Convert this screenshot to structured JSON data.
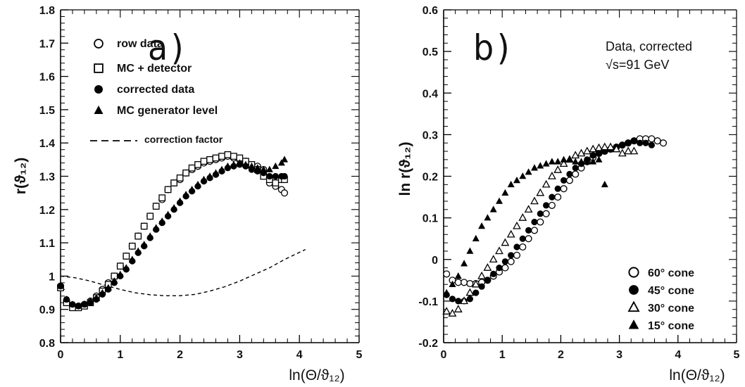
{
  "chart_data": [
    {
      "type": "scatter",
      "panel_label": "a)",
      "ylabel": "r(ϑ₁₂)",
      "xlabel": "ln(Θ/ϑ₁₂)",
      "xlim": [
        0,
        5
      ],
      "ylim": [
        0.8,
        1.8
      ],
      "x_ticks": [
        0,
        1,
        2,
        3,
        4,
        5
      ],
      "y_ticks": [
        0.8,
        0.9,
        1.0,
        1.1,
        1.2,
        1.3,
        1.4,
        1.5,
        1.6,
        1.7,
        1.8
      ],
      "x_tick_labels": [
        "0",
        "1",
        "2",
        "3",
        "4",
        "5"
      ],
      "y_tick_labels": [
        "0.8",
        "0.9",
        "1",
        "1.1",
        "1.2",
        "1.3",
        "1.4",
        "1.5",
        "1.6",
        "1.7",
        "1.8"
      ],
      "grid": false,
      "legend_position": "top-left",
      "series": [
        {
          "name": "row data",
          "marker": "open-circle",
          "x": [
            0.0,
            0.1,
            0.2,
            0.3,
            0.4,
            0.5,
            0.6,
            0.7,
            0.8,
            0.9,
            1.0,
            1.1,
            1.2,
            1.3,
            1.4,
            1.5,
            1.6,
            1.7,
            1.8,
            1.9,
            2.0,
            2.1,
            2.2,
            2.3,
            2.4,
            2.5,
            2.6,
            2.7,
            2.8,
            2.9,
            3.0,
            3.1,
            3.2,
            3.3,
            3.4,
            3.5,
            3.6,
            3.7,
            3.75
          ],
          "y": [
            0.97,
            0.925,
            0.91,
            0.91,
            0.915,
            0.925,
            0.94,
            0.96,
            0.98,
            1.0,
            1.03,
            1.06,
            1.09,
            1.12,
            1.15,
            1.18,
            1.21,
            1.23,
            1.26,
            1.28,
            1.29,
            1.31,
            1.32,
            1.33,
            1.34,
            1.345,
            1.35,
            1.355,
            1.36,
            1.355,
            1.35,
            1.345,
            1.33,
            1.33,
            1.32,
            1.28,
            1.27,
            1.26,
            1.25
          ]
        },
        {
          "name": "MC + detector",
          "marker": "open-square",
          "x": [
            0.0,
            0.1,
            0.2,
            0.3,
            0.4,
            0.5,
            0.6,
            0.7,
            0.8,
            0.9,
            1.0,
            1.1,
            1.2,
            1.3,
            1.4,
            1.5,
            1.6,
            1.7,
            1.8,
            1.9,
            2.0,
            2.1,
            2.2,
            2.3,
            2.4,
            2.5,
            2.6,
            2.7,
            2.8,
            2.9,
            3.0,
            3.1,
            3.2,
            3.3,
            3.4,
            3.5,
            3.6,
            3.7,
            3.75
          ],
          "y": [
            0.965,
            0.92,
            0.905,
            0.905,
            0.91,
            0.92,
            0.935,
            0.955,
            0.975,
            1.0,
            1.03,
            1.06,
            1.09,
            1.12,
            1.15,
            1.18,
            1.21,
            1.235,
            1.26,
            1.28,
            1.295,
            1.31,
            1.325,
            1.335,
            1.345,
            1.35,
            1.355,
            1.36,
            1.365,
            1.36,
            1.355,
            1.345,
            1.335,
            1.32,
            1.3,
            1.29,
            1.28,
            1.29,
            1.29
          ]
        },
        {
          "name": "corrected data",
          "marker": "filled-circle",
          "x": [
            0.0,
            0.1,
            0.2,
            0.3,
            0.4,
            0.5,
            0.6,
            0.7,
            0.8,
            0.9,
            1.0,
            1.1,
            1.2,
            1.3,
            1.4,
            1.5,
            1.6,
            1.7,
            1.8,
            1.9,
            2.0,
            2.1,
            2.2,
            2.3,
            2.4,
            2.5,
            2.6,
            2.7,
            2.8,
            2.9,
            3.0,
            3.1,
            3.2,
            3.3,
            3.4,
            3.5,
            3.6,
            3.7,
            3.75
          ],
          "y": [
            0.97,
            0.93,
            0.915,
            0.91,
            0.915,
            0.92,
            0.93,
            0.945,
            0.96,
            0.98,
            1.0,
            1.02,
            1.045,
            1.07,
            1.09,
            1.115,
            1.14,
            1.16,
            1.18,
            1.2,
            1.22,
            1.24,
            1.255,
            1.27,
            1.285,
            1.295,
            1.305,
            1.315,
            1.325,
            1.33,
            1.335,
            1.33,
            1.32,
            1.315,
            1.31,
            1.3,
            1.3,
            1.3,
            1.3
          ]
        },
        {
          "name": "MC generator level",
          "marker": "filled-triangle",
          "x": [
            0.0,
            0.1,
            0.2,
            0.3,
            0.4,
            0.5,
            0.6,
            0.7,
            0.8,
            0.9,
            1.0,
            1.1,
            1.2,
            1.3,
            1.4,
            1.5,
            1.6,
            1.7,
            1.8,
            1.9,
            2.0,
            2.1,
            2.2,
            2.3,
            2.4,
            2.5,
            2.6,
            2.7,
            2.8,
            2.9,
            3.0,
            3.1,
            3.2,
            3.3,
            3.4,
            3.5,
            3.6,
            3.7,
            3.75
          ],
          "y": [
            0.97,
            0.93,
            0.915,
            0.91,
            0.915,
            0.925,
            0.935,
            0.95,
            0.965,
            0.985,
            1.005,
            1.025,
            1.05,
            1.075,
            1.095,
            1.12,
            1.145,
            1.165,
            1.185,
            1.205,
            1.225,
            1.245,
            1.26,
            1.275,
            1.29,
            1.3,
            1.31,
            1.32,
            1.33,
            1.335,
            1.34,
            1.335,
            1.33,
            1.325,
            1.32,
            1.32,
            1.33,
            1.34,
            1.35
          ]
        }
      ],
      "correction_factor": {
        "name": "correction factor",
        "style": "dashed",
        "x": [
          0.0,
          0.25,
          0.5,
          0.75,
          1.0,
          1.25,
          1.5,
          1.75,
          2.0,
          2.25,
          2.5,
          2.75,
          3.0,
          3.25,
          3.5,
          3.75,
          4.1
        ],
        "y": [
          1.0,
          0.995,
          0.985,
          0.972,
          0.96,
          0.95,
          0.944,
          0.941,
          0.941,
          0.945,
          0.955,
          0.968,
          0.985,
          1.005,
          1.025,
          1.05,
          1.08
        ]
      }
    },
    {
      "type": "scatter",
      "panel_label": "b)",
      "annotation_lines": [
        "Data, corrected",
        "√s=91 GeV"
      ],
      "ylabel": "ln r(ϑ₁₂)",
      "xlabel": "ln(Θ/ϑ₁₂)",
      "xlim": [
        0,
        5
      ],
      "ylim": [
        -0.2,
        0.6
      ],
      "x_ticks": [
        0,
        1,
        2,
        3,
        4,
        5
      ],
      "y_ticks": [
        -0.2,
        -0.1,
        0.0,
        0.1,
        0.2,
        0.3,
        0.4,
        0.5,
        0.6
      ],
      "x_tick_labels": [
        "0",
        "1",
        "2",
        "3",
        "4",
        "5"
      ],
      "y_tick_labels": [
        "-0.2",
        "-0.1",
        "0",
        "0.1",
        "0.2",
        "0.3",
        "0.4",
        "0.5",
        "0.6"
      ],
      "grid": false,
      "legend_position": "bottom-right",
      "series": [
        {
          "name": "60° cone",
          "marker": "open-circle",
          "x": [
            0.05,
            0.15,
            0.25,
            0.35,
            0.45,
            0.55,
            0.65,
            0.75,
            0.85,
            0.95,
            1.05,
            1.15,
            1.25,
            1.35,
            1.45,
            1.55,
            1.65,
            1.75,
            1.85,
            1.95,
            2.05,
            2.15,
            2.25,
            2.35,
            2.45,
            2.55,
            2.65,
            2.75,
            2.85,
            2.95,
            3.05,
            3.15,
            3.25,
            3.35,
            3.45,
            3.55,
            3.65,
            3.75
          ],
          "y": [
            -0.035,
            -0.05,
            -0.055,
            -0.055,
            -0.058,
            -0.058,
            -0.055,
            -0.05,
            -0.04,
            -0.03,
            -0.02,
            -0.005,
            0.01,
            0.03,
            0.05,
            0.07,
            0.09,
            0.11,
            0.13,
            0.15,
            0.17,
            0.19,
            0.205,
            0.22,
            0.235,
            0.245,
            0.255,
            0.26,
            0.265,
            0.27,
            0.275,
            0.28,
            0.285,
            0.29,
            0.29,
            0.29,
            0.285,
            0.28
          ]
        },
        {
          "name": "45° cone",
          "marker": "filled-circle",
          "x": [
            0.05,
            0.15,
            0.25,
            0.35,
            0.45,
            0.55,
            0.65,
            0.75,
            0.85,
            0.95,
            1.05,
            1.15,
            1.25,
            1.35,
            1.45,
            1.55,
            1.65,
            1.75,
            1.85,
            1.95,
            2.05,
            2.15,
            2.25,
            2.35,
            2.45,
            2.55,
            2.65,
            2.75,
            2.85,
            2.95,
            3.05,
            3.15,
            3.25,
            3.35,
            3.45,
            3.55
          ],
          "y": [
            -0.085,
            -0.095,
            -0.1,
            -0.1,
            -0.095,
            -0.08,
            -0.065,
            -0.05,
            -0.035,
            -0.02,
            -0.005,
            0.01,
            0.03,
            0.05,
            0.07,
            0.09,
            0.11,
            0.13,
            0.15,
            0.17,
            0.19,
            0.205,
            0.22,
            0.23,
            0.24,
            0.25,
            0.255,
            0.26,
            0.265,
            0.27,
            0.275,
            0.28,
            0.285,
            0.28,
            0.28,
            0.275
          ]
        },
        {
          "name": "30° cone",
          "marker": "open-triangle",
          "x": [
            0.05,
            0.15,
            0.25,
            0.35,
            0.45,
            0.55,
            0.65,
            0.75,
            0.85,
            0.95,
            1.05,
            1.15,
            1.25,
            1.35,
            1.45,
            1.55,
            1.65,
            1.75,
            1.85,
            1.95,
            2.05,
            2.15,
            2.25,
            2.35,
            2.45,
            2.55,
            2.65,
            2.75,
            2.85,
            2.95,
            3.05,
            3.15,
            3.25
          ],
          "y": [
            -0.125,
            -0.13,
            -0.12,
            -0.1,
            -0.08,
            -0.06,
            -0.04,
            -0.02,
            0.0,
            0.02,
            0.04,
            0.06,
            0.08,
            0.1,
            0.12,
            0.14,
            0.16,
            0.18,
            0.2,
            0.215,
            0.23,
            0.24,
            0.25,
            0.255,
            0.26,
            0.265,
            0.268,
            0.27,
            0.27,
            0.265,
            0.255,
            0.26,
            0.26
          ]
        },
        {
          "name": "15° cone",
          "marker": "filled-triangle",
          "x": [
            0.05,
            0.15,
            0.25,
            0.35,
            0.45,
            0.55,
            0.65,
            0.75,
            0.85,
            0.95,
            1.05,
            1.15,
            1.25,
            1.35,
            1.45,
            1.55,
            1.65,
            1.75,
            1.85,
            1.95,
            2.05,
            2.15,
            2.25,
            2.35,
            2.45,
            2.55,
            2.65,
            2.75
          ],
          "y": [
            -0.08,
            -0.06,
            -0.04,
            -0.01,
            0.02,
            0.05,
            0.08,
            0.1,
            0.12,
            0.14,
            0.16,
            0.18,
            0.19,
            0.2,
            0.21,
            0.22,
            0.225,
            0.23,
            0.235,
            0.235,
            0.24,
            0.24,
            0.235,
            0.235,
            0.235,
            0.235,
            0.24,
            0.18
          ]
        }
      ]
    }
  ]
}
